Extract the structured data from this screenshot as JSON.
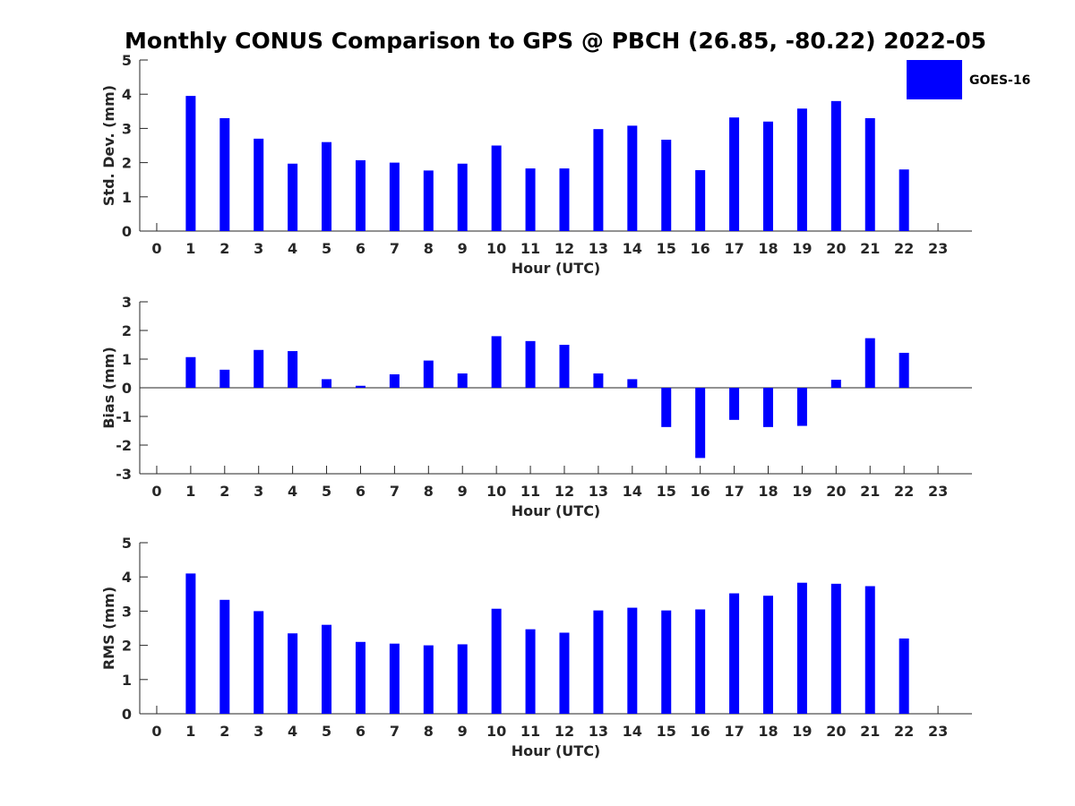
{
  "title": "Monthly CONUS Comparison to GPS @ PBCH (26.85, -80.22) 2022-05",
  "bar_color": "#0000ff",
  "axis_color": "#262626",
  "legend": {
    "label": "GOES-16",
    "placement": "top-right"
  },
  "chart_data": [
    {
      "type": "bar",
      "xlabel": "Hour (UTC)",
      "ylabel": "Std. Dev. (mm)",
      "ylim": [
        0,
        5
      ],
      "yticks": [
        "0",
        "1",
        "2",
        "3",
        "4",
        "5"
      ],
      "categories": [
        "0",
        "1",
        "2",
        "3",
        "4",
        "5",
        "6",
        "7",
        "8",
        "9",
        "10",
        "11",
        "12",
        "13",
        "14",
        "15",
        "16",
        "17",
        "18",
        "19",
        "20",
        "21",
        "22",
        "23"
      ],
      "series": [
        {
          "name": "GOES-16",
          "values": [
            null,
            3.95,
            3.3,
            2.7,
            1.97,
            2.6,
            2.07,
            2.0,
            1.77,
            1.97,
            2.5,
            1.83,
            1.83,
            2.98,
            3.08,
            2.67,
            1.78,
            3.32,
            3.2,
            3.58,
            3.8,
            3.3,
            1.8,
            null
          ]
        }
      ]
    },
    {
      "type": "bar",
      "xlabel": "Hour (UTC)",
      "ylabel": "Bias (mm)",
      "ylim": [
        -3,
        3
      ],
      "yticks": [
        "-3",
        "-2",
        "-1",
        "0",
        "1",
        "2",
        "3"
      ],
      "categories": [
        "0",
        "1",
        "2",
        "3",
        "4",
        "5",
        "6",
        "7",
        "8",
        "9",
        "10",
        "11",
        "12",
        "13",
        "14",
        "15",
        "16",
        "17",
        "18",
        "19",
        "20",
        "21",
        "22",
        "23"
      ],
      "series": [
        {
          "name": "GOES-16",
          "values": [
            null,
            1.07,
            0.63,
            1.32,
            1.28,
            0.3,
            0.07,
            0.47,
            0.95,
            0.5,
            1.8,
            1.63,
            1.5,
            0.5,
            0.3,
            -1.37,
            -2.45,
            -1.12,
            -1.37,
            -1.33,
            0.28,
            1.73,
            1.22,
            null
          ]
        }
      ]
    },
    {
      "type": "bar",
      "xlabel": "Hour (UTC)",
      "ylabel": "RMS (mm)",
      "ylim": [
        0,
        5
      ],
      "yticks": [
        "0",
        "1",
        "2",
        "3",
        "4",
        "5"
      ],
      "categories": [
        "0",
        "1",
        "2",
        "3",
        "4",
        "5",
        "6",
        "7",
        "8",
        "9",
        "10",
        "11",
        "12",
        "13",
        "14",
        "15",
        "16",
        "17",
        "18",
        "19",
        "20",
        "21",
        "22",
        "23"
      ],
      "series": [
        {
          "name": "GOES-16",
          "values": [
            null,
            4.1,
            3.33,
            3.0,
            2.35,
            2.6,
            2.1,
            2.05,
            2.0,
            2.03,
            3.07,
            2.47,
            2.37,
            3.02,
            3.1,
            3.02,
            3.05,
            3.52,
            3.45,
            3.83,
            3.8,
            3.73,
            2.2,
            null
          ]
        }
      ]
    }
  ]
}
